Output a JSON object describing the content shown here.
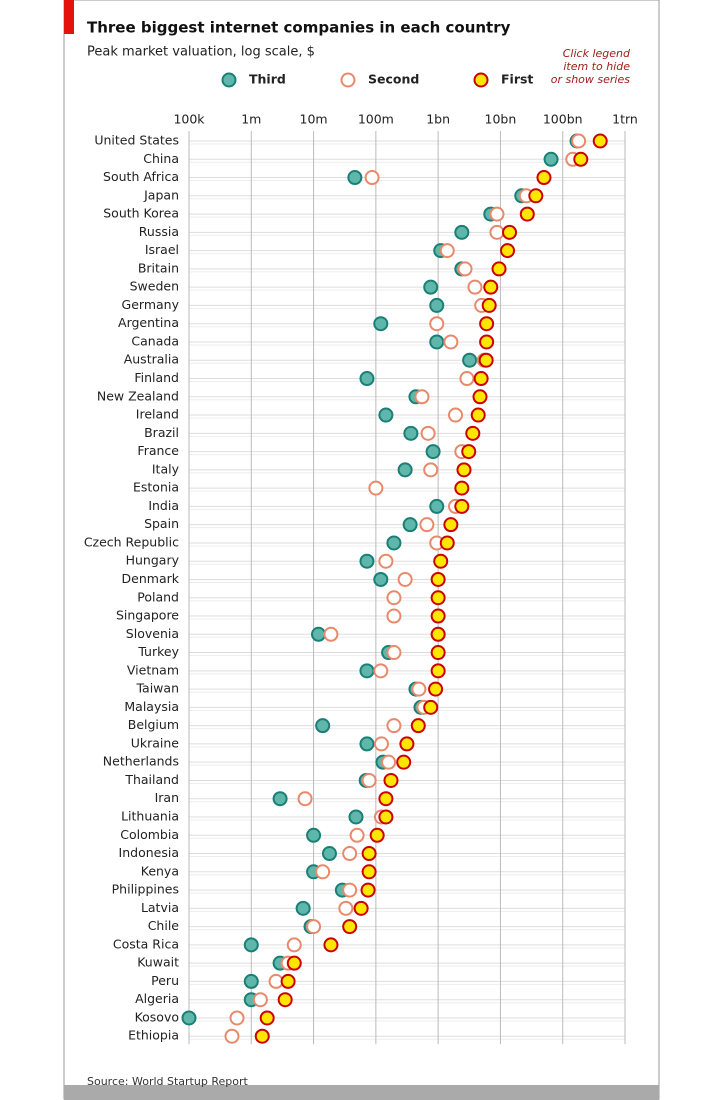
{
  "chart_data": {
    "type": "dot",
    "title": "Three biggest internet companies in each country",
    "subtitle": "Peak market valuation, log scale, $",
    "annotation": [
      "Click legend",
      "item to hide",
      "or show series"
    ],
    "source": "Source: World Startup Report",
    "log_scale": true,
    "grid": true,
    "xlim": [
      100000,
      1000000000000
    ],
    "xticks": [
      {
        "value": 100000,
        "label": "100k"
      },
      {
        "value": 1000000,
        "label": "1m"
      },
      {
        "value": 10000000,
        "label": "10m"
      },
      {
        "value": 100000000,
        "label": "100m"
      },
      {
        "value": 1000000000,
        "label": "1bn"
      },
      {
        "value": 10000000000,
        "label": "10bn"
      },
      {
        "value": 100000000000,
        "label": "100bn"
      },
      {
        "value": 1000000000000,
        "label": "1trn"
      }
    ],
    "categories": [
      "United States",
      "China",
      "South Africa",
      "Japan",
      "South Korea",
      "Russia",
      "Israel",
      "Britain",
      "Sweden",
      "Germany",
      "Argentina",
      "Canada",
      "Australia",
      "Finland",
      "New Zealand",
      "Ireland",
      "Brazil",
      "France",
      "Italy",
      "Estonia",
      "India",
      "Spain",
      "Czech Republic",
      "Hungary",
      "Denmark",
      "Poland",
      "Singapore",
      "Slovenia",
      "Turkey",
      "Vietnam",
      "Taiwan",
      "Malaysia",
      "Belgium",
      "Ukraine",
      "Netherlands",
      "Thailand",
      "Iran",
      "Lithuania",
      "Colombia",
      "Indonesia",
      "Kenya",
      "Philippines",
      "Latvia",
      "Chile",
      "Costa Rica",
      "Kuwait",
      "Peru",
      "Algeria",
      "Kosovo",
      "Ethiopia"
    ],
    "series": [
      {
        "name": "Third",
        "color": "#5fb7ac",
        "edgecolor": "#1a7f74",
        "values": [
          170000000000.0,
          65000000000.0,
          46000000.0,
          22000000000.0,
          7000000000.0,
          2400000000.0,
          1100000000.0,
          2400000000.0,
          760000000.0,
          950000000.0,
          120000000.0,
          950000000.0,
          3200000000.0,
          72000000.0,
          440000000.0,
          145000000.0,
          365000000.0,
          830000000.0,
          295000000.0,
          null,
          950000000.0,
          355000000.0,
          195000000.0,
          72000000.0,
          120000000.0,
          null,
          null,
          12000000.0,
          160000000.0,
          72000000.0,
          440000000.0,
          530000000.0,
          14000000.0,
          72000000.0,
          130000000.0,
          70000000.0,
          2900000.0,
          48000000.0,
          10000000.0,
          18000000.0,
          10000000.0,
          29000000.0,
          6800000.0,
          9100000.0,
          1000000.0,
          2900000.0,
          1000000.0,
          1000000.0,
          100000.0,
          null
        ]
      },
      {
        "name": "Second",
        "color": "#ffffff",
        "edgecolor": "#e8896b",
        "values": [
          180000000000.0,
          145000000000.0,
          87000000.0,
          26000000000.0,
          8800000000.0,
          8800000000.0,
          1400000000.0,
          2700000000.0,
          3900000000.0,
          5000000000.0,
          950000000.0,
          1600000000.0,
          5500000000.0,
          2900000000.0,
          550000000.0,
          1900000000.0,
          690000000.0,
          2400000000.0,
          760000000.0,
          100000000.0,
          1900000000.0,
          660000000.0,
          950000000.0,
          145000000.0,
          295000000.0,
          195000000.0,
          195000000.0,
          19000000.0,
          195000000.0,
          120000000.0,
          490000000.0,
          590000000.0,
          195000000.0,
          123000000.0,
          160000000.0,
          78000000.0,
          7300000.0,
          123000000.0,
          50000000.0,
          38000000.0,
          14000000.0,
          38000000.0,
          33000000.0,
          10000000.0,
          4900000.0,
          3900000.0,
          2500000.0,
          1400000.0,
          590000.0,
          490000.0
        ]
      },
      {
        "name": "First",
        "color": "#ffe600",
        "edgecolor": "#cc0000",
        "values": [
          400000000000.0,
          195000000000.0,
          50000000000.0,
          37000000000.0,
          27000000000.0,
          14000000000.0,
          13000000000.0,
          9500000000.0,
          7000000000.0,
          6600000000.0,
          6000000000.0,
          6000000000.0,
          5900000000.0,
          4900000000.0,
          4700000000.0,
          4400000000.0,
          3600000000.0,
          3100000000.0,
          2600000000.0,
          2400000000.0,
          2400000000.0,
          1600000000.0,
          1400000000.0,
          1100000000.0,
          1000000000.0,
          1000000000.0,
          1000000000.0,
          1000000000.0,
          1000000000.0,
          1000000000.0,
          910000000.0,
          760000000.0,
          480000000.0,
          315000000.0,
          280000000.0,
          175000000.0,
          145000000.0,
          145000000.0,
          105000000.0,
          78000000.0,
          78000000.0,
          75000000.0,
          58000000.0,
          38000000.0,
          19000000.0,
          4900000.0,
          3900000.0,
          3500000.0,
          1800000.0,
          1500000.0
        ]
      }
    ]
  }
}
